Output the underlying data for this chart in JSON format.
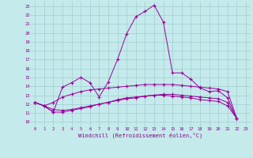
{
  "xlabel": "Windchill (Refroidissement éolien,°C)",
  "bg_color": "#c5eaec",
  "grid_color": "#a0ccce",
  "line_color": "#990099",
  "text_color": "#880088",
  "xmin": 0,
  "xmax": 23,
  "ymin": 10,
  "ymax": 23,
  "yticks": [
    10,
    11,
    12,
    13,
    14,
    15,
    16,
    17,
    18,
    19,
    20,
    21,
    22,
    23
  ],
  "xticks": [
    0,
    1,
    2,
    3,
    4,
    5,
    6,
    7,
    8,
    9,
    10,
    11,
    12,
    13,
    14,
    15,
    16,
    17,
    18,
    19,
    20,
    21,
    22,
    23
  ],
  "series": [
    {
      "x": [
        0,
        1,
        2,
        3,
        4,
        5,
        6,
        7,
        8,
        9,
        10,
        11,
        12,
        13,
        14,
        15,
        16,
        17,
        18,
        19,
        20,
        21,
        22
      ],
      "y": [
        12.2,
        11.8,
        11.1,
        13.9,
        14.4,
        15.0,
        14.4,
        12.8,
        14.5,
        17.0,
        19.9,
        21.8,
        22.4,
        23.1,
        21.2,
        15.5,
        15.5,
        14.8,
        13.8,
        13.4,
        13.5,
        12.7,
        10.4
      ]
    },
    {
      "x": [
        0,
        1,
        2,
        3,
        4,
        5,
        6,
        7,
        8,
        9,
        10,
        11,
        12,
        13,
        14,
        15,
        16,
        17,
        18,
        19,
        20,
        21,
        22
      ],
      "y": [
        12.2,
        11.8,
        11.1,
        11.1,
        11.3,
        11.5,
        11.7,
        12.0,
        12.2,
        12.5,
        12.7,
        12.8,
        12.9,
        13.0,
        13.0,
        12.9,
        12.8,
        12.7,
        12.5,
        12.4,
        12.3,
        11.8,
        10.4
      ]
    },
    {
      "x": [
        0,
        1,
        2,
        3,
        4,
        5,
        6,
        7,
        8,
        9,
        10,
        11,
        12,
        13,
        14,
        15,
        16,
        17,
        18,
        19,
        20,
        21,
        22
      ],
      "y": [
        12.2,
        11.8,
        12.2,
        12.8,
        13.1,
        13.4,
        13.6,
        13.7,
        13.8,
        13.9,
        14.0,
        14.1,
        14.2,
        14.2,
        14.2,
        14.2,
        14.1,
        14.0,
        13.9,
        13.8,
        13.7,
        13.4,
        10.4
      ]
    },
    {
      "x": [
        0,
        1,
        2,
        3,
        4,
        5,
        6,
        7,
        8,
        9,
        10,
        11,
        12,
        13,
        14,
        15,
        16,
        17,
        18,
        19,
        20,
        21,
        22
      ],
      "y": [
        12.2,
        11.8,
        11.4,
        11.3,
        11.4,
        11.6,
        11.8,
        12.0,
        12.2,
        12.4,
        12.6,
        12.7,
        12.9,
        13.0,
        13.1,
        13.1,
        13.0,
        12.9,
        12.8,
        12.7,
        12.6,
        12.2,
        10.4
      ]
    }
  ]
}
